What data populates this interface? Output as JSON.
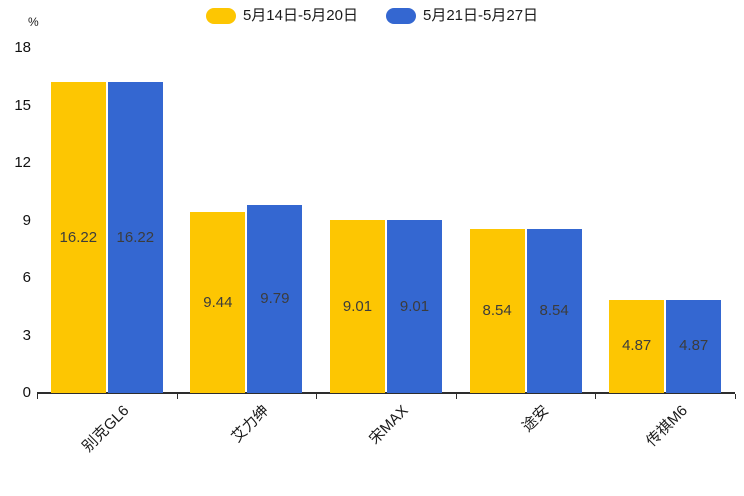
{
  "chart_data": {
    "type": "bar",
    "categories": [
      "别克GL6",
      "艾力绅",
      "宋MAX",
      "途安",
      "传祺M6"
    ],
    "series": [
      {
        "name": "5月14日-5月20日",
        "color": "#FDC602",
        "values": [
          16.22,
          9.44,
          9.01,
          8.54,
          4.87
        ]
      },
      {
        "name": "5月21日-5月27日",
        "color": "#3467D1",
        "values": [
          16.22,
          9.79,
          9.01,
          8.54,
          4.87
        ]
      }
    ],
    "title": "",
    "xlabel": "",
    "ylabel": "%",
    "ylim": [
      0,
      18
    ],
    "yticks": [
      0,
      3,
      6,
      9,
      12,
      15,
      18
    ],
    "grid": false,
    "legend_position": "top",
    "value_labels": true,
    "value_label_format": "2-decimals"
  },
  "colors": {
    "background": "#ffffff",
    "axis": "#2d2d2d",
    "tick_text": "#111111",
    "bar_value_text": "#3c3c3c",
    "legend_text": "#1a1a1a"
  }
}
